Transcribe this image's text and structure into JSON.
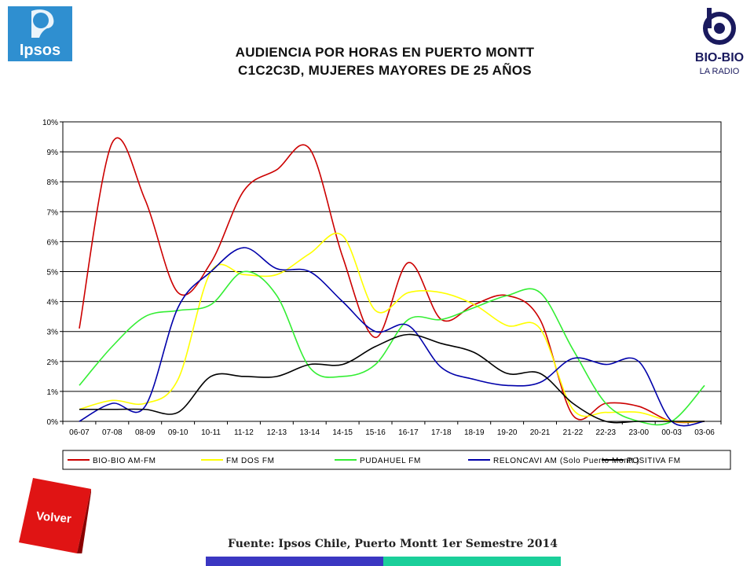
{
  "header": {
    "title_line1": "AUDIENCIA POR HORAS EN PUERTO MONTT",
    "title_line2": "C1C2C3D, MUJERES MAYORES DE 25 AÑOS",
    "ipsos_logo_text": "Ipsos",
    "biobio_logo_text": "BIO-BIO",
    "biobio_logo_subtext": "LA RADIO"
  },
  "footer": {
    "volver_label": "Volver",
    "source": "Fuente: Ipsos Chile, Puerto Montt 1er Semestre 2014",
    "colors": {
      "blue_bar": "#3b37c2",
      "teal_bar": "#1bcf9a",
      "volver_red": "#e01414"
    }
  },
  "chart_data": {
    "type": "line",
    "smooth": true,
    "categories": [
      "06-07",
      "07-08",
      "08-09",
      "09-10",
      "10-11",
      "11-12",
      "12-13",
      "13-14",
      "14-15",
      "15-16",
      "16-17",
      "17-18",
      "18-19",
      "19-20",
      "20-21",
      "21-22",
      "22-23",
      "23-00",
      "00-03",
      "03-06"
    ],
    "ylim": [
      0,
      10
    ],
    "yticks": [
      "0%",
      "1%",
      "2%",
      "3%",
      "4%",
      "5%",
      "6%",
      "7%",
      "8%",
      "9%",
      "10%"
    ],
    "grid": "horizontal",
    "legend_placement": "bottom",
    "series": [
      {
        "name": "BIO-BIO AM-FM",
        "color": "#cc0000",
        "values": [
          3.1,
          9.3,
          7.4,
          4.3,
          5.3,
          7.7,
          8.4,
          9.1,
          5.5,
          2.8,
          5.3,
          3.4,
          3.9,
          4.2,
          3.4,
          0.2,
          0.6,
          0.5,
          0.0,
          0.0
        ]
      },
      {
        "name": "FM DOS FM",
        "color": "#ffff00",
        "values": [
          0.4,
          0.7,
          0.6,
          1.4,
          5.0,
          4.9,
          4.9,
          5.6,
          6.2,
          3.7,
          4.3,
          4.3,
          3.9,
          3.2,
          3.1,
          0.4,
          0.3,
          0.3,
          0.0,
          0.0
        ]
      },
      {
        "name": "PUDAHUEL FM",
        "color": "#33ee33",
        "values": [
          1.2,
          2.5,
          3.5,
          3.7,
          3.9,
          5.0,
          4.2,
          1.8,
          1.5,
          1.9,
          3.4,
          3.4,
          3.8,
          4.2,
          4.3,
          2.4,
          0.6,
          0.0,
          0.0,
          1.2
        ]
      },
      {
        "name": "RELONCAVI AM (Solo Puerto Montt.)",
        "color": "#0000aa",
        "values": [
          0.0,
          0.6,
          0.5,
          3.8,
          5.0,
          5.8,
          5.1,
          5.0,
          4.0,
          3.0,
          3.2,
          1.8,
          1.4,
          1.2,
          1.3,
          2.1,
          1.9,
          2.0,
          0.0,
          0.0
        ]
      },
      {
        "name": "POSITIVA FM",
        "color": "#000000",
        "values": [
          0.4,
          0.4,
          0.4,
          0.3,
          1.5,
          1.5,
          1.5,
          1.9,
          1.9,
          2.5,
          2.9,
          2.6,
          2.3,
          1.6,
          1.6,
          0.6,
          0.0,
          0.0,
          0.0,
          0.0
        ]
      }
    ]
  }
}
